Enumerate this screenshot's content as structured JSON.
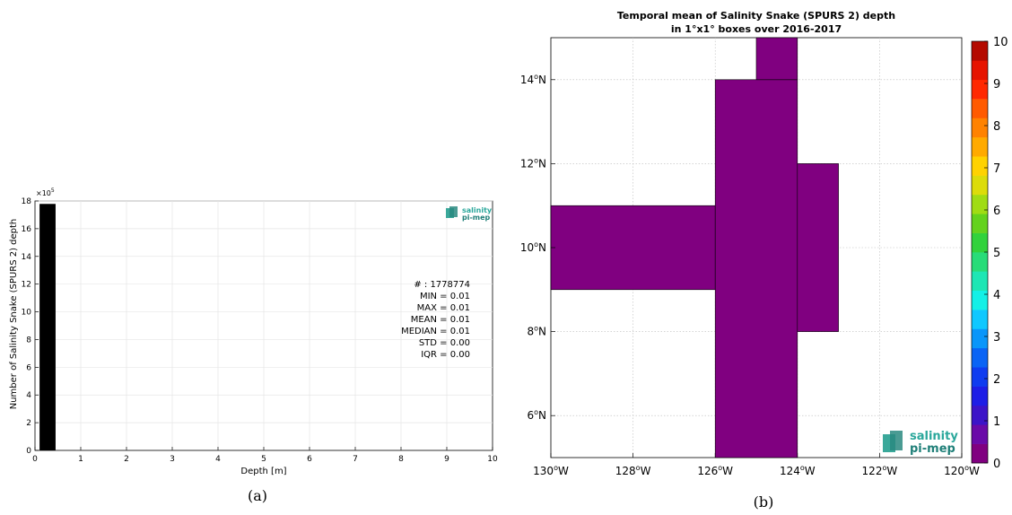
{
  "panel_a_label": "(a)",
  "panel_b_label": "(b)",
  "logo": {
    "line1": "salinity",
    "line2": "pi-mep"
  },
  "histogram": {
    "ylabel": "Number of Salinity Snake (SPURS 2) depth",
    "xlabel": "Depth [m]",
    "exponent_label": "×10",
    "exponent_power": "5",
    "stats": [
      "# : 1778774",
      "MIN = 0.01",
      "MAX =  0.01",
      "MEAN = 0.01",
      "MEDIAN = 0.01",
      "STD = 0.00",
      "IQR = 0.00"
    ]
  },
  "map": {
    "title_line1": "Temporal mean of Salinity Snake (SPURS 2) depth",
    "title_line2": "in 1°x1° boxes over 2016-2017",
    "fill_color": "#800080"
  },
  "chart_data": [
    {
      "type": "bar",
      "xlabel": "Depth [m]",
      "ylabel": "Number of Salinity Snake (SPURS 2) depth",
      "xlim": [
        0,
        10
      ],
      "ylim": [
        0,
        1800000
      ],
      "x_ticks": [
        0,
        1,
        2,
        3,
        4,
        5,
        6,
        7,
        8,
        9,
        10
      ],
      "y_ticks": [
        0,
        2,
        4,
        6,
        8,
        10,
        12,
        14,
        16,
        18
      ],
      "y_multiplier": "×10^5",
      "bars": [
        {
          "x0": 0.1,
          "x1": 0.45,
          "value": 1778774
        }
      ],
      "bar_color": "#000000",
      "grid": true
    },
    {
      "type": "heatmap",
      "title": "Temporal mean of Salinity Snake (SPURS 2) depth in 1°x1° boxes over 2016-2017",
      "x_range_lon": [
        -130,
        -120
      ],
      "y_range_lat": [
        5,
        15
      ],
      "x_ticks": [
        "130°W",
        "128°W",
        "126°W",
        "124°W",
        "122°W",
        "120°W"
      ],
      "y_ticks": [
        "6°N",
        "8°N",
        "10°N",
        "12°N",
        "14°N"
      ],
      "colorbar": {
        "min": 0,
        "max": 10,
        "ticks": [
          0,
          1,
          2,
          3,
          4,
          5,
          6,
          7,
          8,
          9,
          10
        ]
      },
      "cells_value": 0.01,
      "cells": [
        {
          "lon": [
            -130,
            -126
          ],
          "lat": [
            9,
            11
          ]
        },
        {
          "lon": [
            -126,
            -124
          ],
          "lat": [
            5,
            14
          ]
        },
        {
          "lon": [
            -125,
            -124
          ],
          "lat": [
            14,
            15
          ]
        },
        {
          "lon": [
            -124,
            -123
          ],
          "lat": [
            8,
            12
          ]
        }
      ],
      "grid": true
    }
  ]
}
